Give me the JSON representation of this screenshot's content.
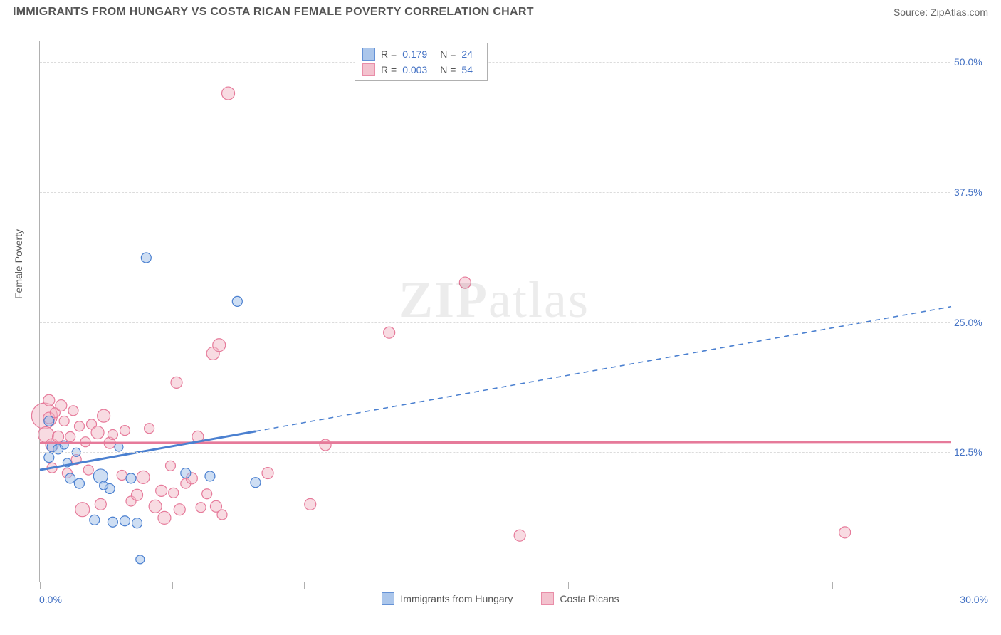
{
  "header": {
    "title": "IMMIGRANTS FROM HUNGARY VS COSTA RICAN FEMALE POVERTY CORRELATION CHART",
    "source_prefix": "Source: ",
    "source_name": "ZipAtlas.com"
  },
  "chart": {
    "type": "scatter",
    "ylabel": "Female Poverty",
    "x_min_label": "0.0%",
    "x_max_label": "30.0%",
    "xlim": [
      0,
      30
    ],
    "ylim": [
      0,
      52
    ],
    "xticks": [
      0,
      4.35,
      8.69,
      13.04,
      17.39,
      21.74,
      26.09
    ],
    "y_gridlines": [
      {
        "value": 12.5,
        "label": "12.5%"
      },
      {
        "value": 25.0,
        "label": "25.0%"
      },
      {
        "value": 37.5,
        "label": "37.5%"
      },
      {
        "value": 50.0,
        "label": "50.0%"
      }
    ],
    "background_color": "#ffffff",
    "grid_color": "#dcdcdc",
    "axis_color": "#b0b0b0",
    "tick_label_color": "#4472c4",
    "text_color": "#555555"
  },
  "series": {
    "hungary": {
      "label": "Immigrants from Hungary",
      "fill_color": "#9dbde8",
      "stroke_color": "#4b80d0",
      "fill_opacity": 0.5,
      "R": "0.179",
      "N": "24",
      "trend_y0": 10.8,
      "trend_y30": 26.5,
      "trend_solid_xmax": 7.1,
      "points": [
        {
          "x": 0.3,
          "y": 12.0,
          "r": 7
        },
        {
          "x": 0.3,
          "y": 15.5,
          "r": 7
        },
        {
          "x": 0.4,
          "y": 13.0,
          "r": 7
        },
        {
          "x": 0.6,
          "y": 12.8,
          "r": 7
        },
        {
          "x": 0.8,
          "y": 13.2,
          "r": 6
        },
        {
          "x": 1.0,
          "y": 10.0,
          "r": 7
        },
        {
          "x": 1.2,
          "y": 12.5,
          "r": 6
        },
        {
          "x": 1.3,
          "y": 9.5,
          "r": 7
        },
        {
          "x": 1.8,
          "y": 6.0,
          "r": 7
        },
        {
          "x": 2.0,
          "y": 10.2,
          "r": 10
        },
        {
          "x": 2.3,
          "y": 9.0,
          "r": 7
        },
        {
          "x": 2.4,
          "y": 5.8,
          "r": 7
        },
        {
          "x": 2.6,
          "y": 13.0,
          "r": 6
        },
        {
          "x": 3.0,
          "y": 10.0,
          "r": 7
        },
        {
          "x": 2.8,
          "y": 5.9,
          "r": 7
        },
        {
          "x": 3.2,
          "y": 5.7,
          "r": 7
        },
        {
          "x": 3.3,
          "y": 2.2,
          "r": 6
        },
        {
          "x": 3.5,
          "y": 31.2,
          "r": 7
        },
        {
          "x": 4.8,
          "y": 10.5,
          "r": 7
        },
        {
          "x": 5.6,
          "y": 10.2,
          "r": 7
        },
        {
          "x": 6.5,
          "y": 27.0,
          "r": 7
        },
        {
          "x": 7.1,
          "y": 9.6,
          "r": 7
        },
        {
          "x": 2.1,
          "y": 9.3,
          "r": 6
        },
        {
          "x": 0.9,
          "y": 11.5,
          "r": 6
        }
      ]
    },
    "costarica": {
      "label": "Costa Ricans",
      "fill_color": "#f2b8c6",
      "stroke_color": "#e67a9a",
      "fill_opacity": 0.5,
      "R": "0.003",
      "N": "54",
      "trend_y0": 13.4,
      "trend_y30": 13.5,
      "trend_solid_xmax": 30,
      "points": [
        {
          "x": 0.15,
          "y": 16.0,
          "r": 18
        },
        {
          "x": 0.2,
          "y": 14.2,
          "r": 11
        },
        {
          "x": 0.3,
          "y": 15.8,
          "r": 8
        },
        {
          "x": 0.3,
          "y": 17.5,
          "r": 8
        },
        {
          "x": 0.4,
          "y": 13.2,
          "r": 9
        },
        {
          "x": 0.4,
          "y": 11.0,
          "r": 7
        },
        {
          "x": 0.5,
          "y": 16.3,
          "r": 7
        },
        {
          "x": 0.6,
          "y": 14.0,
          "r": 8
        },
        {
          "x": 0.7,
          "y": 17.0,
          "r": 8
        },
        {
          "x": 0.8,
          "y": 15.5,
          "r": 7
        },
        {
          "x": 0.9,
          "y": 10.5,
          "r": 7
        },
        {
          "x": 1.0,
          "y": 14.0,
          "r": 7
        },
        {
          "x": 1.1,
          "y": 16.5,
          "r": 7
        },
        {
          "x": 1.2,
          "y": 11.8,
          "r": 7
        },
        {
          "x": 1.3,
          "y": 15.0,
          "r": 7
        },
        {
          "x": 1.4,
          "y": 7.0,
          "r": 10
        },
        {
          "x": 1.5,
          "y": 13.5,
          "r": 7
        },
        {
          "x": 1.6,
          "y": 10.8,
          "r": 7
        },
        {
          "x": 1.7,
          "y": 15.2,
          "r": 7
        },
        {
          "x": 1.9,
          "y": 14.4,
          "r": 9
        },
        {
          "x": 2.0,
          "y": 7.5,
          "r": 8
        },
        {
          "x": 2.1,
          "y": 16.0,
          "r": 9
        },
        {
          "x": 2.3,
          "y": 13.4,
          "r": 8
        },
        {
          "x": 2.4,
          "y": 14.2,
          "r": 7
        },
        {
          "x": 2.7,
          "y": 10.3,
          "r": 7
        },
        {
          "x": 2.8,
          "y": 14.6,
          "r": 7
        },
        {
          "x": 3.0,
          "y": 7.8,
          "r": 7
        },
        {
          "x": 3.2,
          "y": 8.4,
          "r": 8
        },
        {
          "x": 3.4,
          "y": 10.1,
          "r": 9
        },
        {
          "x": 3.6,
          "y": 14.8,
          "r": 7
        },
        {
          "x": 3.8,
          "y": 7.3,
          "r": 9
        },
        {
          "x": 4.0,
          "y": 8.8,
          "r": 8
        },
        {
          "x": 4.1,
          "y": 6.2,
          "r": 9
        },
        {
          "x": 4.3,
          "y": 11.2,
          "r": 7
        },
        {
          "x": 4.4,
          "y": 8.6,
          "r": 7
        },
        {
          "x": 4.5,
          "y": 19.2,
          "r": 8
        },
        {
          "x": 4.6,
          "y": 7.0,
          "r": 8
        },
        {
          "x": 4.8,
          "y": 9.5,
          "r": 7
        },
        {
          "x": 5.0,
          "y": 10.0,
          "r": 8
        },
        {
          "x": 5.2,
          "y": 14.0,
          "r": 8
        },
        {
          "x": 5.3,
          "y": 7.2,
          "r": 7
        },
        {
          "x": 5.5,
          "y": 8.5,
          "r": 7
        },
        {
          "x": 5.7,
          "y": 22.0,
          "r": 9
        },
        {
          "x": 5.8,
          "y": 7.3,
          "r": 8
        },
        {
          "x": 5.9,
          "y": 22.8,
          "r": 9
        },
        {
          "x": 6.0,
          "y": 6.5,
          "r": 7
        },
        {
          "x": 6.2,
          "y": 47.0,
          "r": 9
        },
        {
          "x": 7.5,
          "y": 10.5,
          "r": 8
        },
        {
          "x": 8.9,
          "y": 7.5,
          "r": 8
        },
        {
          "x": 9.4,
          "y": 13.2,
          "r": 8
        },
        {
          "x": 11.5,
          "y": 24.0,
          "r": 8
        },
        {
          "x": 14.0,
          "y": 28.8,
          "r": 8
        },
        {
          "x": 15.8,
          "y": 4.5,
          "r": 8
        },
        {
          "x": 26.5,
          "y": 4.8,
          "r": 8
        }
      ]
    }
  },
  "legend_labels": {
    "R": "R  =",
    "N": "N  ="
  },
  "watermark": {
    "bold": "ZIP",
    "light": "atlas"
  }
}
